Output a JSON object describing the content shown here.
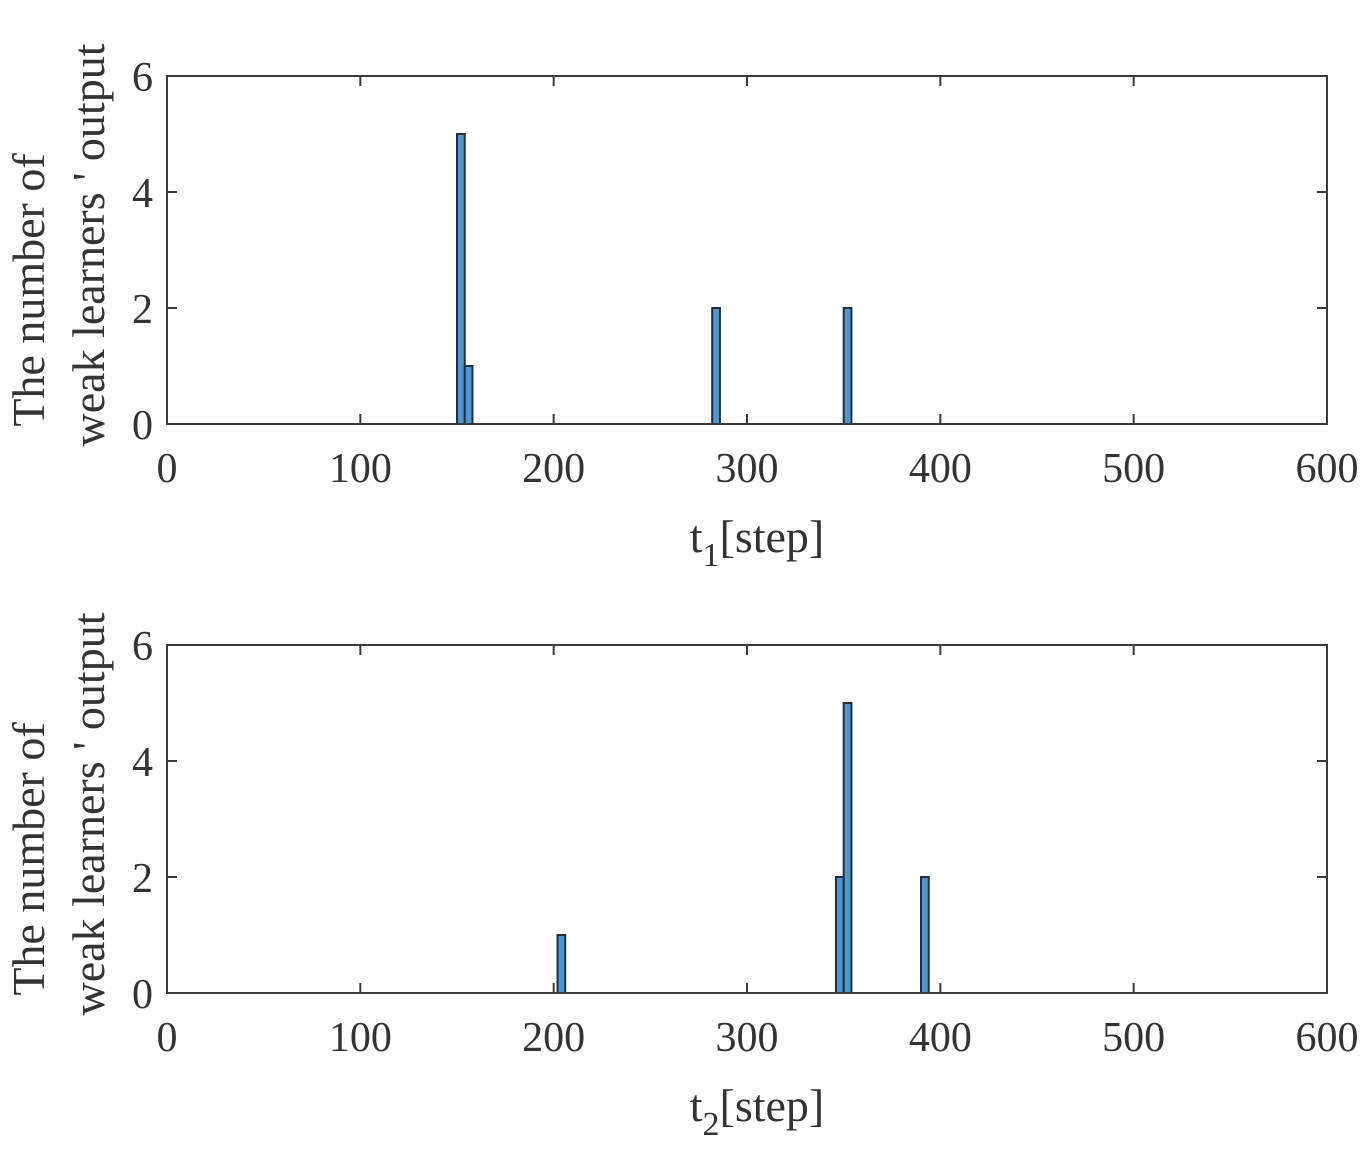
{
  "chart_data": [
    {
      "type": "bar",
      "xlabel_main": "t",
      "xlabel_sub": "1",
      "xlabel_rest": "[step]",
      "ylabel_line1": "The number of",
      "ylabel_line2": "weak learners ' output",
      "xlim": [
        0,
        600
      ],
      "ylim": [
        0,
        6
      ],
      "xticks": [
        0,
        100,
        200,
        300,
        400,
        500,
        600
      ],
      "yticks": [
        0,
        2,
        4,
        6
      ],
      "bar_width": 4,
      "color": "#4d97d0",
      "bars": [
        {
          "x": 152,
          "value": 5
        },
        {
          "x": 156,
          "value": 1
        },
        {
          "x": 284,
          "value": 2
        },
        {
          "x": 352,
          "value": 2
        }
      ]
    },
    {
      "type": "bar",
      "xlabel_main": "t",
      "xlabel_sub": "2",
      "xlabel_rest": "[step]",
      "ylabel_line1": "The number of",
      "ylabel_line2": "weak learners ' output",
      "xlim": [
        0,
        600
      ],
      "ylim": [
        0,
        6
      ],
      "xticks": [
        0,
        100,
        200,
        300,
        400,
        500,
        600
      ],
      "yticks": [
        0,
        2,
        4,
        6
      ],
      "bar_width": 4,
      "color": "#4d97d0",
      "bars": [
        {
          "x": 204,
          "value": 1
        },
        {
          "x": 348,
          "value": 2
        },
        {
          "x": 352,
          "value": 5
        },
        {
          "x": 392,
          "value": 2
        }
      ]
    }
  ]
}
